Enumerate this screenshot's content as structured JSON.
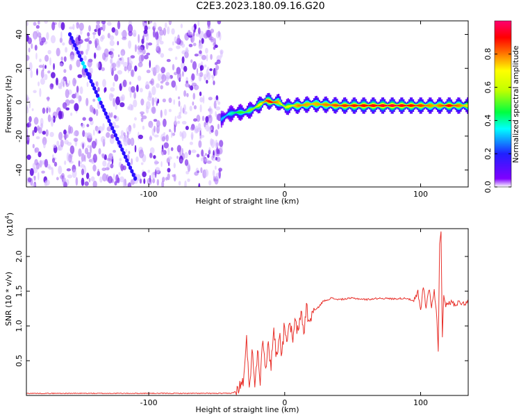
{
  "title": "C2E3.2023.180.09.16.G20",
  "chart_data": [
    {
      "type": "heatmap",
      "xlabel": "Height of straight line (km)",
      "ylabel": "Frequency (Hz)",
      "xlim": [
        -190,
        135
      ],
      "ylim": [
        -50,
        48
      ],
      "x_ticks": [
        -100,
        0,
        100
      ],
      "x_tick_labels": [
        "-100",
        "0",
        "100"
      ],
      "y_ticks": [
        -40,
        -20,
        0,
        20,
        40
      ],
      "y_tick_labels": [
        "-40",
        "-20",
        "0",
        "20",
        "40"
      ],
      "noise_region_x": [
        -190,
        -46
      ],
      "diagonal_streak": {
        "start": [
          -158,
          40
        ],
        "end": [
          -110,
          -45
        ]
      },
      "ridge": {
        "x": [
          -47,
          -42,
          -36,
          -30,
          -24,
          -18,
          -14,
          -10,
          -5,
          0,
          5,
          10,
          20,
          40,
          60,
          80,
          100,
          110,
          120,
          135
        ],
        "freq_hz": [
          -10,
          -7,
          -6,
          -6,
          -4,
          -1,
          1,
          0,
          0,
          -3,
          -2,
          -2,
          -1,
          -2,
          -2,
          -2,
          -2,
          -2,
          -2,
          -2
        ],
        "amplitude": [
          0.3,
          0.35,
          0.45,
          0.5,
          0.55,
          0.7,
          0.85,
          0.9,
          0.75,
          0.6,
          0.7,
          0.8,
          0.75,
          0.85,
          0.9,
          0.95,
          0.85,
          0.75,
          0.9,
          0.7
        ]
      },
      "colorbar": {
        "label": "Normalized spectral amplitude",
        "range": [
          0,
          1
        ],
        "ticks": [
          0.0,
          0.2,
          0.4,
          0.6,
          0.8
        ],
        "tick_labels": [
          "0.0",
          "0.2",
          "0.4",
          "0.6",
          "0.8"
        ]
      }
    },
    {
      "type": "line",
      "xlabel": "Height of straight line (km)",
      "ylabel": "SNR (10 * v/v)",
      "y_multiplier": "(x10",
      "y_multiplier_exp": "4",
      "y_multiplier_close": ")",
      "xlim": [
        -190,
        135
      ],
      "ylim": [
        0,
        24000
      ],
      "x_ticks": [
        -100,
        0,
        100
      ],
      "x_tick_labels": [
        "-100",
        "0",
        "100"
      ],
      "y_ticks": [
        5000,
        10000,
        15000,
        20000
      ],
      "y_tick_labels": [
        "0.5",
        "1.0",
        "1.5",
        "2.0"
      ],
      "color": "#e8302a",
      "series": [
        {
          "x": [
            -190,
            -120,
            -60,
            -40,
            -35,
            -32,
            -30,
            -28,
            -26,
            -24,
            -22,
            -20,
            -18,
            -16,
            -14,
            -12,
            -10,
            -8,
            -6,
            -4,
            -2,
            0,
            2,
            4,
            6,
            8,
            10,
            12,
            14,
            16,
            18,
            20,
            24,
            28,
            34,
            40,
            50,
            60,
            70,
            80,
            90,
            95,
            98,
            100,
            102,
            104,
            106,
            108,
            110,
            112,
            113,
            114,
            115,
            116,
            117,
            118,
            120,
            125,
            130,
            135
          ],
          "values": [
            300,
            300,
            300,
            300,
            600,
            1500,
            2500,
            7800,
            1500,
            6200,
            2000,
            6500,
            2500,
            8800,
            4000,
            7000,
            4500,
            9500,
            5500,
            9000,
            6000,
            10500,
            7500,
            10800,
            7500,
            11000,
            8500,
            12500,
            8800,
            13000,
            10000,
            12000,
            12500,
            13500,
            14000,
            13800,
            14000,
            13800,
            14000,
            13900,
            14000,
            13500,
            14800,
            12000,
            15800,
            12500,
            15500,
            13000,
            15000,
            11000,
            6500,
            22000,
            24000,
            8000,
            14500,
            13000,
            13500,
            13200,
            13400,
            13300
          ]
        }
      ]
    }
  ]
}
